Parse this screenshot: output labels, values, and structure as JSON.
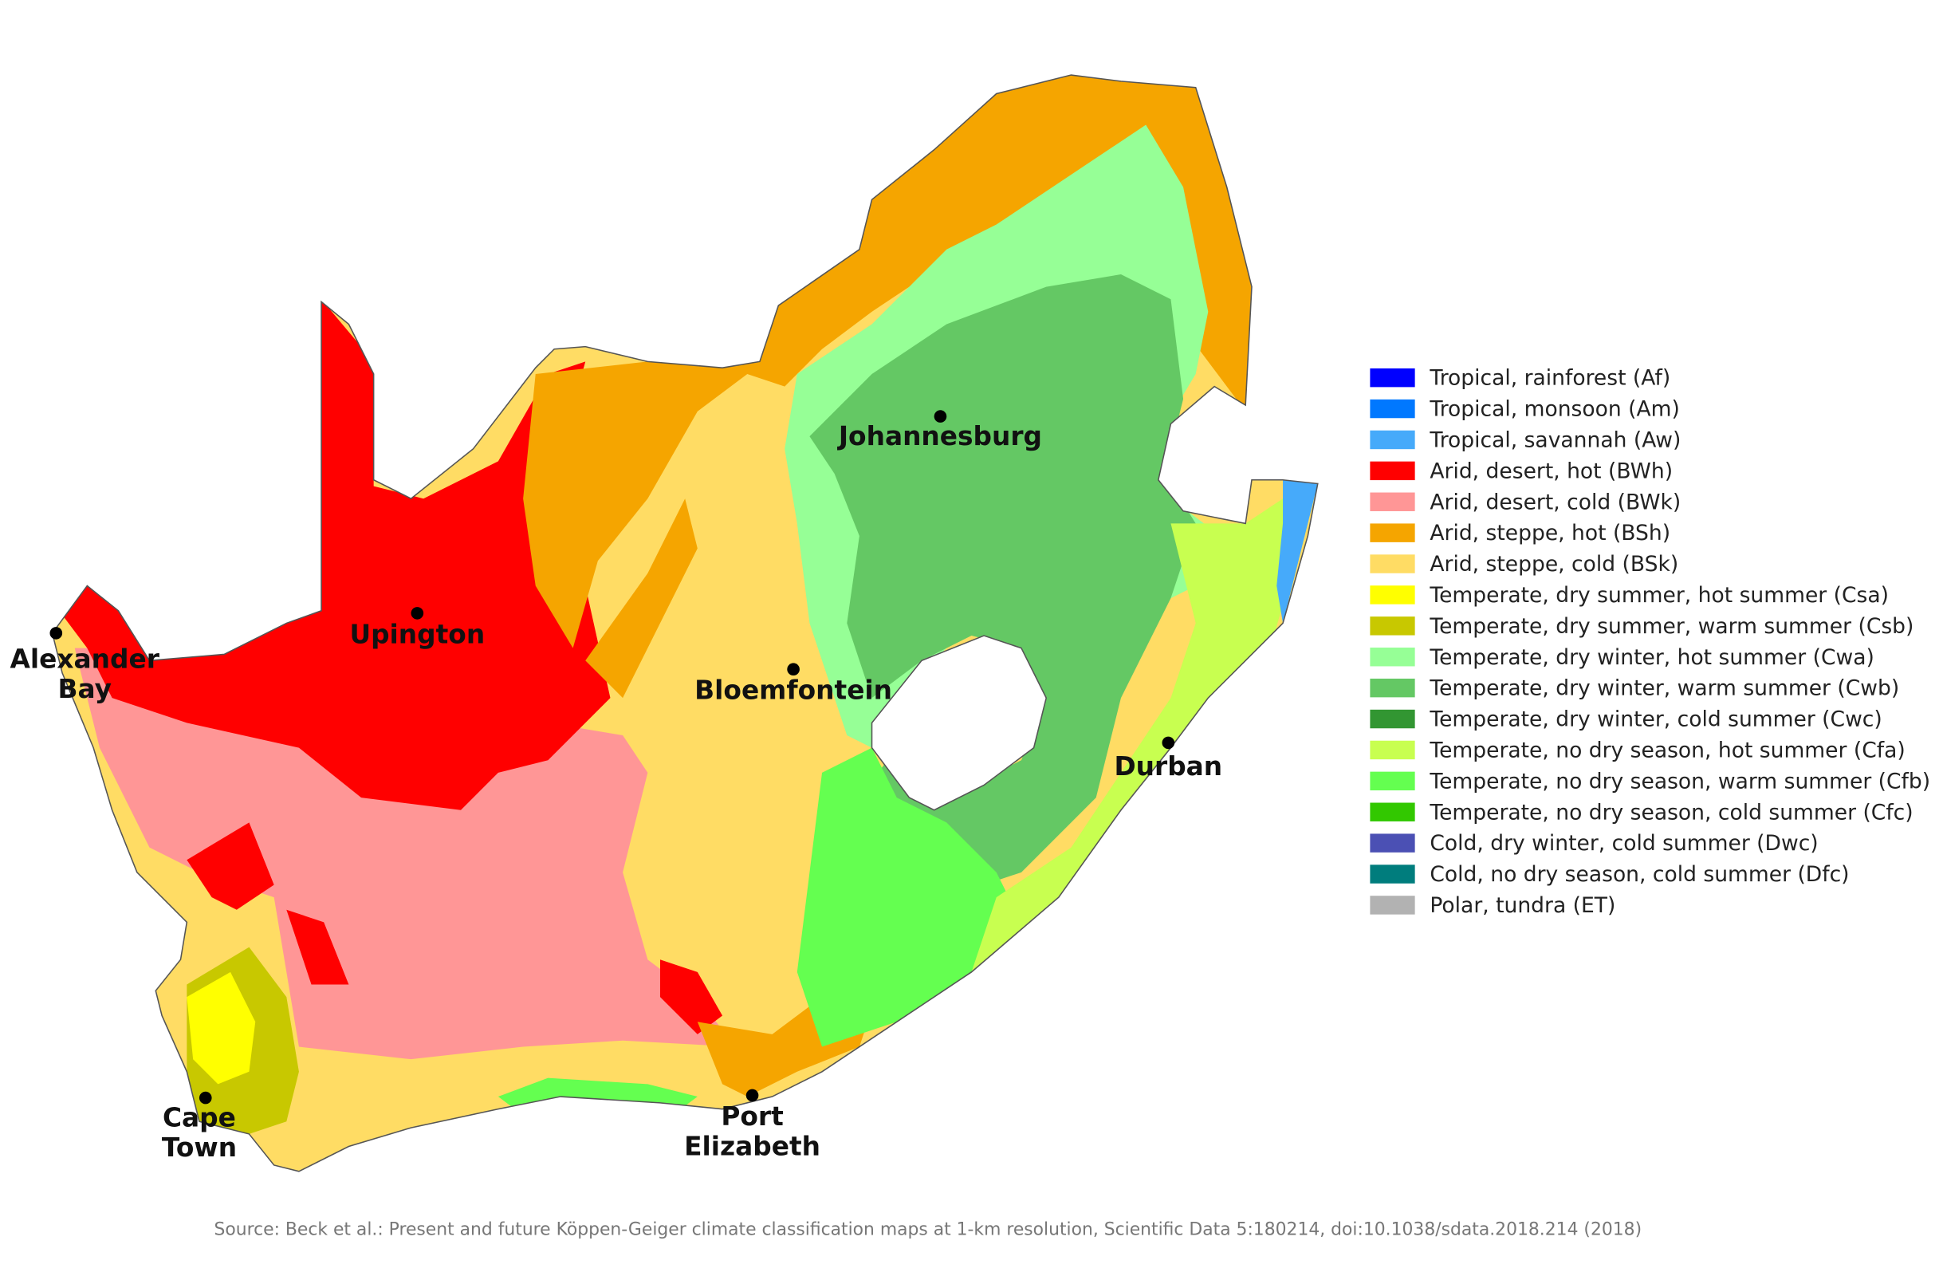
{
  "legend": {
    "items": [
      {
        "label": "Tropical, rainforest (Af)",
        "color": "#0000ff"
      },
      {
        "label": "Tropical, monsoon (Am)",
        "color": "#0078ff"
      },
      {
        "label": "Tropical, savannah (Aw)",
        "color": "#46aafa"
      },
      {
        "label": "Arid, desert, hot (BWh)",
        "color": "#ff0000"
      },
      {
        "label": "Arid, desert, cold (BWk)",
        "color": "#ff9696"
      },
      {
        "label": "Arid, steppe, hot (BSh)",
        "color": "#f5a500"
      },
      {
        "label": "Arid, steppe, cold (BSk)",
        "color": "#ffdc64"
      },
      {
        "label": "Temperate, dry summer, hot summer (Csa)",
        "color": "#ffff00"
      },
      {
        "label": "Temperate, dry summer, warm summer (Csb)",
        "color": "#c8c800"
      },
      {
        "label": "Temperate, dry winter, hot summer (Cwa)",
        "color": "#96ff96"
      },
      {
        "label": "Temperate, dry winter, warm summer (Cwb)",
        "color": "#64c864"
      },
      {
        "label": "Temperate, dry winter, cold summer (Cwc)",
        "color": "#329632"
      },
      {
        "label": "Temperate, no dry season, hot summer (Cfa)",
        "color": "#c8ff50"
      },
      {
        "label": "Temperate, no dry season, warm summer (Cfb)",
        "color": "#64ff50"
      },
      {
        "label": "Temperate, no dry season, cold summer (Cfc)",
        "color": "#32c800"
      },
      {
        "label": "Cold, dry winter, cold summer (Dwc)",
        "color": "#4b50b4"
      },
      {
        "label": "Cold, no dry season, cold summer (Dfc)",
        "color": "#007d7d"
      },
      {
        "label": "Polar, tundra (ET)",
        "color": "#b2b2b2"
      }
    ]
  },
  "cities": [
    {
      "lines": [
        "Johannesburg"
      ]
    },
    {
      "lines": [
        "Upington"
      ]
    },
    {
      "lines": [
        "Alexander",
        "Bay"
      ]
    },
    {
      "lines": [
        "Bloemfontein"
      ]
    },
    {
      "lines": [
        "Durban"
      ]
    },
    {
      "lines": [
        "Cape",
        "Town"
      ]
    },
    {
      "lines": [
        "Port",
        "Elizabeth"
      ]
    }
  ],
  "source": "Source: Beck et al.: Present and future Köppen-Geiger climate classification maps at 1-km resolution, Scientific Data 5:180214, doi:10.1038/sdata.2018.214 (2018)"
}
